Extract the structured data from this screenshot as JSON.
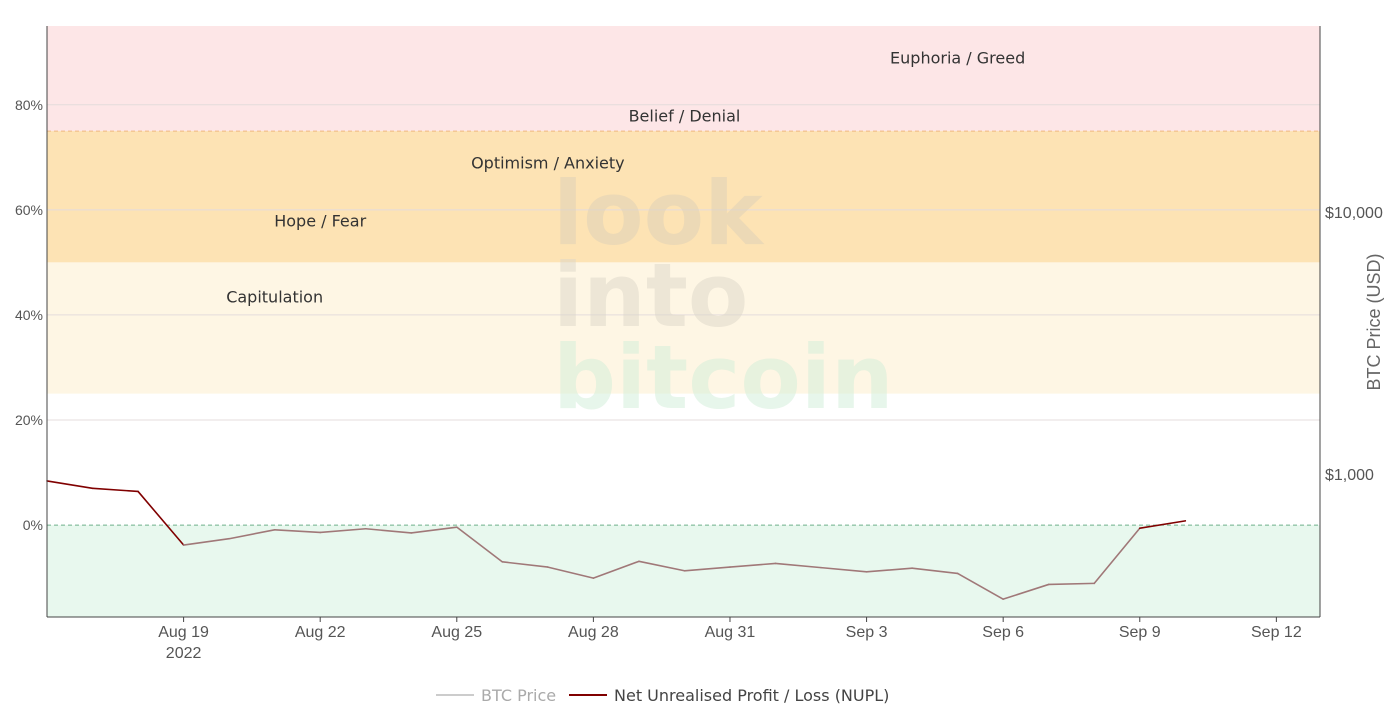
{
  "chart_data": {
    "type": "line",
    "y_axis": {
      "ticks": [
        "0%",
        "20%",
        "40%",
        "60%",
        "80%"
      ],
      "tick_values": [
        0,
        0.2,
        0.4,
        0.6,
        0.8
      ],
      "range": [
        -0.175,
        0.95
      ]
    },
    "y2_axis": {
      "label": "BTC Price (USD)",
      "ticks": [
        "$1,000",
        "$10,000"
      ],
      "tick_values": [
        1000,
        10000
      ],
      "scale": "log"
    },
    "x_axis": {
      "ticks": [
        {
          "label": "Aug 19",
          "sub": "2022",
          "date": "2022-08-19"
        },
        {
          "label": "Aug 22",
          "sub": "",
          "date": "2022-08-22"
        },
        {
          "label": "Aug 25",
          "sub": "",
          "date": "2022-08-25"
        },
        {
          "label": "Aug 28",
          "sub": "",
          "date": "2022-08-28"
        },
        {
          "label": "Aug 31",
          "sub": "",
          "date": "2022-08-31"
        },
        {
          "label": "Sep 3",
          "sub": "",
          "date": "2022-09-03"
        },
        {
          "label": "Sep 6",
          "sub": "",
          "date": "2022-09-06"
        },
        {
          "label": "Sep 9",
          "sub": "",
          "date": "2022-09-09"
        },
        {
          "label": "Sep 12",
          "sub": "",
          "date": "2022-09-12"
        }
      ],
      "range": [
        "2022-08-16",
        "2022-09-12T23:00"
      ]
    },
    "zones": [
      {
        "name": "Euphoria / Greed",
        "from": 0.75,
        "to": 1.0,
        "color": "#fde6e7"
      },
      {
        "name": "Belief / Denial",
        "from": 0.5,
        "to": 0.75,
        "color": "#fde3b4"
      },
      {
        "name": "Optimism / Anxiety",
        "from": 0.25,
        "to": 0.5,
        "color": "#fef6e4"
      },
      {
        "name": "Hope / Fear",
        "from": 0.0,
        "to": 0.25,
        "color": "#ffffff"
      },
      {
        "name": "Capitulation",
        "from": -0.175,
        "to": 0.0,
        "color": "#e8f8ee"
      }
    ],
    "zone_labels": [
      {
        "text": "Euphoria / Greed",
        "date": "2022-09-05",
        "y": 0.89
      },
      {
        "text": "Belief / Denial",
        "date": "2022-08-30",
        "y": 0.78
      },
      {
        "text": "Optimism / Anxiety",
        "date": "2022-08-27",
        "y": 0.69
      },
      {
        "text": "Hope / Fear",
        "date": "2022-08-22",
        "y": 0.58
      },
      {
        "text": "Capitulation",
        "date": "2022-08-21",
        "y": 0.435
      }
    ],
    "series": [
      {
        "name": "Net Unrealised Profit / Loss (NUPL)",
        "color": "#800000",
        "x": [
          "2022-08-16",
          "2022-08-17",
          "2022-08-18",
          "2022-08-19",
          "2022-08-20",
          "2022-08-21",
          "2022-08-22",
          "2022-08-23",
          "2022-08-24",
          "2022-08-25",
          "2022-08-26",
          "2022-08-27",
          "2022-08-28",
          "2022-08-29",
          "2022-08-30",
          "2022-08-31",
          "2022-09-01",
          "2022-09-02",
          "2022-09-03",
          "2022-09-04",
          "2022-09-05",
          "2022-09-06",
          "2022-09-07",
          "2022-09-08",
          "2022-09-09",
          "2022-09-10"
        ],
        "y": [
          0.084,
          0.07,
          0.064,
          -0.038,
          -0.026,
          -0.009,
          -0.014,
          -0.007,
          -0.015,
          -0.004,
          -0.07,
          -0.08,
          -0.101,
          -0.069,
          -0.087,
          -0.08,
          -0.073,
          -0.081,
          -0.089,
          -0.082,
          -0.092,
          -0.141,
          -0.113,
          -0.111,
          -0.006,
          0.008
        ]
      },
      {
        "name": "BTC Price",
        "color": "#cccccc",
        "x": [],
        "y": []
      }
    ],
    "watermark": [
      "look",
      "into",
      "bitcoin"
    ],
    "legend_position": "bottom-center",
    "grid": true
  }
}
